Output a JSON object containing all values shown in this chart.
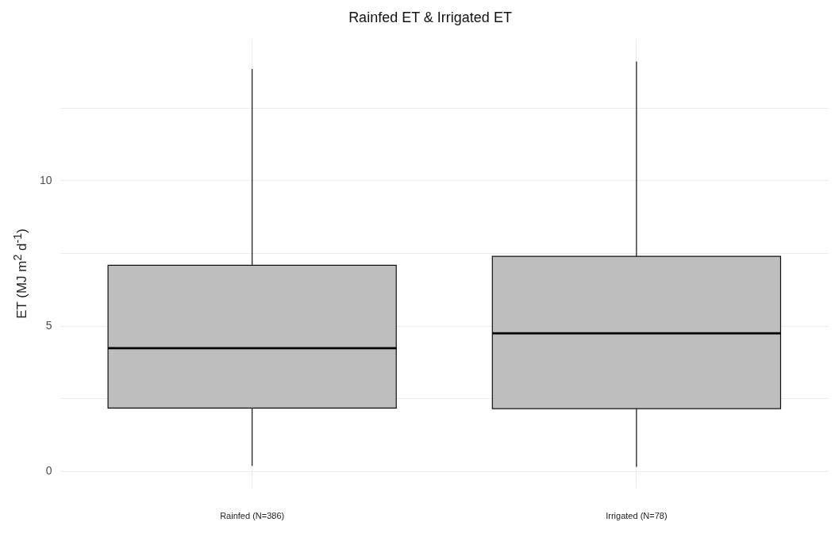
{
  "chart_data": {
    "type": "box",
    "title": "Rainfed ET & Irrigated ET",
    "ylabel": "ET (MJ m$^{2}$ d$^{-1}$)",
    "categories": [
      "Rainfed (N=386)",
      "Irrigated (N=78)"
    ],
    "color": "#bebebe",
    "boxes": [
      {
        "low": 0.19,
        "q1": 2.18,
        "median": 4.24,
        "q3": 7.09,
        "high": 13.84
      },
      {
        "low": 0.16,
        "q1": 2.16,
        "median": 4.75,
        "q3": 7.4,
        "high": 14.1
      }
    ],
    "ylim": [
      -0.56,
      14.86
    ],
    "yticks": [
      0,
      {
        "value": 2.5,
        "label": null
      },
      5,
      {
        "value": 7.5,
        "label": null
      },
      10,
      {
        "value": 12.5,
        "label": null
      }
    ],
    "grid": true,
    "legend": false
  }
}
